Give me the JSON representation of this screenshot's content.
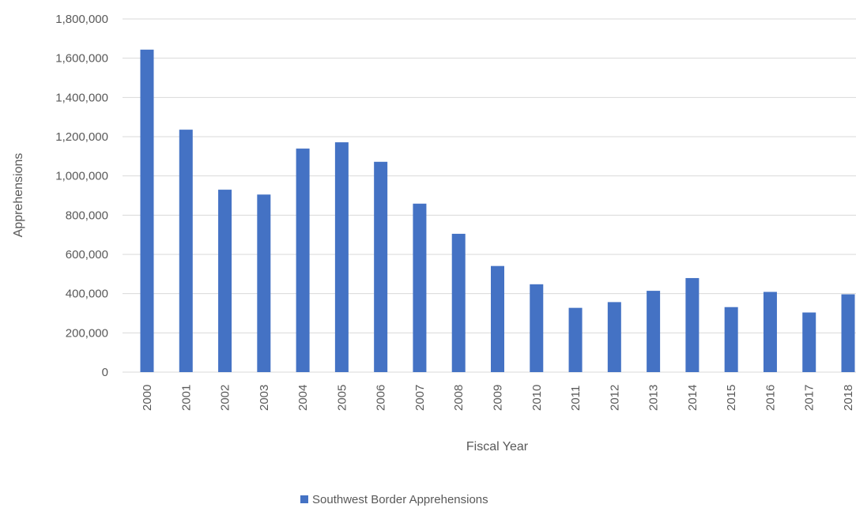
{
  "chart_data": {
    "type": "bar",
    "title": "",
    "xlabel": "Fiscal Year",
    "ylabel": "Apprehensions",
    "ylim": [
      0,
      1800000
    ],
    "y_ticks": [
      "0",
      "200,000",
      "400,000",
      "600,000",
      "800,000",
      "1,000,000",
      "1,200,000",
      "1,400,000",
      "1,600,000",
      "1,800,000"
    ],
    "grid": true,
    "legend_position": "bottom",
    "categories": [
      "2000",
      "2001",
      "2002",
      "2003",
      "2004",
      "2005",
      "2006",
      "2007",
      "2008",
      "2009",
      "2010",
      "2011",
      "2012",
      "2013",
      "2014",
      "2015",
      "2016",
      "2017",
      "2018"
    ],
    "series": [
      {
        "name": "Southwest Border Apprehensions",
        "color": "#4472c4",
        "values": [
          1643679,
          1235718,
          929809,
          905065,
          1139282,
          1171396,
          1071972,
          858638,
          705005,
          540865,
          447731,
          327577,
          356873,
          414397,
          479371,
          331333,
          408870,
          303916,
          396579
        ]
      }
    ]
  }
}
